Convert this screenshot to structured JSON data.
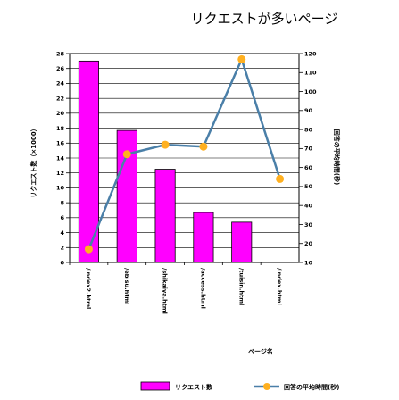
{
  "chart_data": {
    "type": "bar+line",
    "title": "リクエストが多いページ",
    "xlabel": "ページ名",
    "ylabel_left": "リクエスト数（×1000）",
    "ylabel_right": "回答の平均時間(秒)",
    "categories": [
      "/index2.html",
      "/ebisu.html",
      "/shikaiya.html",
      "/access.html",
      "/tuisin.html",
      "/index.html"
    ],
    "left_ylim": [
      0,
      28
    ],
    "left_ticks": [
      0,
      2,
      4,
      6,
      8,
      10,
      12,
      14,
      16,
      18,
      20,
      22,
      24,
      26,
      28
    ],
    "right_ylim": [
      10,
      120
    ],
    "right_ticks": [
      10,
      20,
      30,
      40,
      50,
      60,
      70,
      80,
      90,
      100,
      110,
      120
    ],
    "series": [
      {
        "name": "リクエスト数",
        "type": "bar",
        "axis": "left",
        "color": "#ff00ff",
        "values": [
          27,
          17.7,
          12.5,
          6.7,
          5.4,
          0
        ]
      },
      {
        "name": "回答の平均時間(秒)",
        "type": "line",
        "axis": "right",
        "color": "#4a7fa8",
        "marker_color": "#ffb020",
        "values": [
          17,
          67,
          72,
          71,
          117,
          54
        ]
      }
    ],
    "grid": true,
    "legend_placement": "bottom"
  }
}
